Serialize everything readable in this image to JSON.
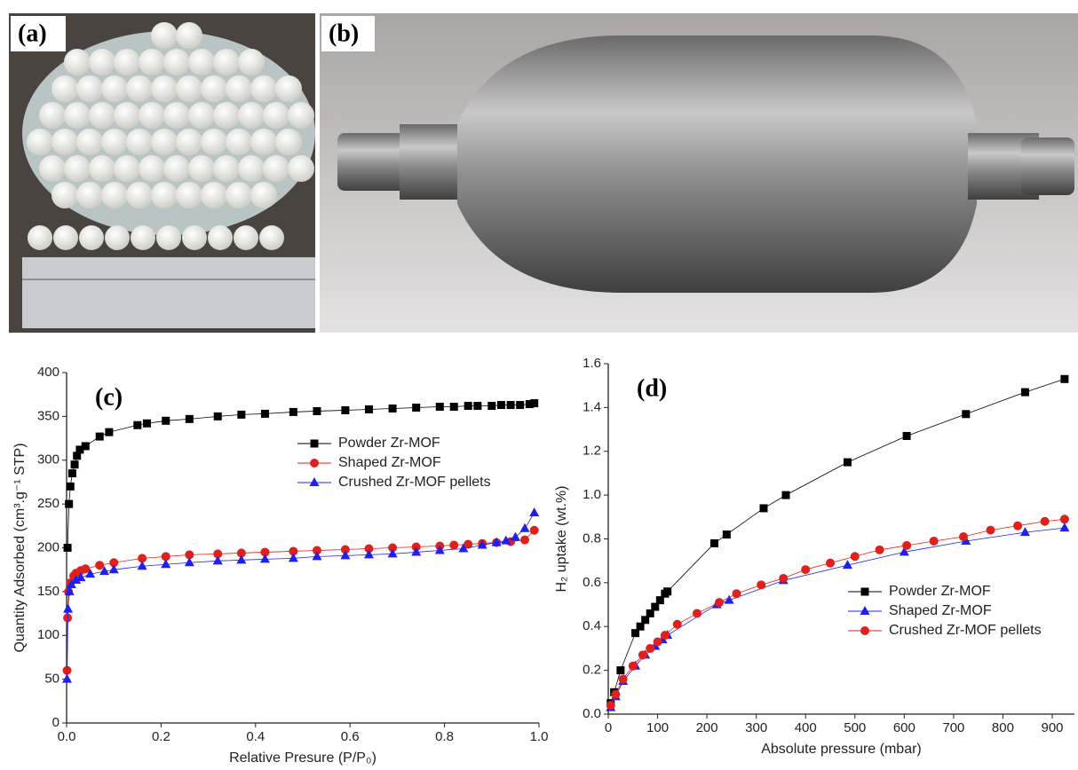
{
  "panels": {
    "a": "(a)",
    "b": "(b)"
  },
  "chart_data": [
    {
      "type": "line",
      "annotation": "(c)",
      "x_label": "Relative Presure (P/P₀)",
      "y_label": "Quantity Adsorbed (cm³.g⁻¹ STP)",
      "xlim": [
        0,
        1
      ],
      "ylim": [
        0,
        400
      ],
      "xticks": [
        {
          "value": 0,
          "label": "0.0"
        },
        0.2,
        0.4,
        0.6,
        0.8,
        {
          "value": 1,
          "label": "1.0"
        }
      ],
      "yticks": [
        0,
        50,
        100,
        150,
        200,
        250,
        300,
        350,
        400
      ],
      "legend": "right",
      "series": [
        {
          "name": "Powder Zr-MOF",
          "color": "#000000",
          "marker": "square",
          "x": [
            0.002,
            0.005,
            0.008,
            0.012,
            0.017,
            0.022,
            0.028,
            0.04,
            0.07,
            0.09,
            0.15,
            0.17,
            0.21,
            0.26,
            0.32,
            0.37,
            0.42,
            0.48,
            0.53,
            0.59,
            0.64,
            0.69,
            0.74,
            0.79,
            0.82,
            0.85,
            0.87,
            0.9,
            0.92,
            0.94,
            0.96,
            0.98,
            0.99
          ],
          "values": [
            200,
            250,
            270,
            285,
            295,
            305,
            312,
            316,
            327,
            332,
            340,
            342,
            345,
            347,
            350,
            352,
            353,
            355,
            356,
            357,
            358,
            359,
            360,
            361,
            361,
            362,
            362,
            362,
            363,
            363,
            363,
            364,
            365
          ]
        },
        {
          "name": "Shaped Zr-MOF",
          "color": "#e0201c",
          "marker": "circle",
          "x": [
            0.001,
            0.002,
            0.004,
            0.008,
            0.015,
            0.02,
            0.03,
            0.04,
            0.07,
            0.1,
            0.16,
            0.21,
            0.26,
            0.32,
            0.37,
            0.42,
            0.48,
            0.53,
            0.59,
            0.64,
            0.69,
            0.74,
            0.79,
            0.82,
            0.85,
            0.88,
            0.91,
            0.94,
            0.97,
            0.99
          ],
          "values": [
            60,
            120,
            150,
            160,
            168,
            171,
            174,
            176,
            180,
            183,
            188,
            190,
            192,
            193,
            194,
            195,
            196,
            197,
            198,
            199,
            200,
            201,
            202,
            203,
            204,
            205,
            206,
            207,
            209,
            220
          ]
        },
        {
          "name": "Crushed Zr-MOF pellets",
          "color": "#1f1ff0",
          "marker": "triangle",
          "x": [
            0.001,
            0.003,
            0.006,
            0.01,
            0.02,
            0.03,
            0.05,
            0.08,
            0.1,
            0.16,
            0.21,
            0.26,
            0.32,
            0.37,
            0.42,
            0.48,
            0.53,
            0.59,
            0.64,
            0.69,
            0.74,
            0.79,
            0.84,
            0.88,
            0.91,
            0.93,
            0.95,
            0.97,
            0.99
          ],
          "values": [
            50,
            130,
            150,
            158,
            163,
            166,
            170,
            173,
            175,
            179,
            181,
            183,
            185,
            186,
            187,
            188,
            190,
            191,
            192,
            193,
            195,
            197,
            199,
            203,
            206,
            208,
            212,
            222,
            240
          ]
        }
      ]
    },
    {
      "type": "line",
      "annotation": "(d)",
      "x_label": "Absolute pressure (mbar)",
      "y_label": "H₂ uptake (wt.%)",
      "xlim": [
        0,
        945
      ],
      "ylim": [
        0,
        1.6
      ],
      "xticks": [
        0,
        100,
        200,
        300,
        400,
        500,
        600,
        700,
        800,
        900
      ],
      "yticks": [
        {
          "value": 0,
          "label": "0.0"
        },
        0.2,
        0.4,
        0.6,
        0.8,
        {
          "value": 1,
          "label": "1.0"
        },
        1.2,
        1.4,
        1.6
      ],
      "legend": "lower right",
      "series": [
        {
          "name": "Powder Zr-MOF",
          "color": "#000000",
          "marker": "square",
          "x": [
            5,
            12,
            25,
            55,
            65,
            75,
            85,
            95,
            105,
            115,
            120,
            215,
            240,
            315,
            360,
            485,
            605,
            725,
            845,
            925
          ],
          "values": [
            0.05,
            0.1,
            0.2,
            0.37,
            0.4,
            0.43,
            0.46,
            0.49,
            0.52,
            0.55,
            0.56,
            0.78,
            0.82,
            0.94,
            1.0,
            1.15,
            1.27,
            1.37,
            1.47,
            1.53
          ]
        },
        {
          "name": "Shaped Zr-MOF",
          "color": "#1f1ff0",
          "marker": "triangle",
          "x": [
            5,
            15,
            30,
            55,
            75,
            95,
            110,
            120,
            220,
            245,
            355,
            485,
            600,
            725,
            845,
            925
          ],
          "values": [
            0.03,
            0.08,
            0.15,
            0.22,
            0.27,
            0.31,
            0.34,
            0.36,
            0.5,
            0.52,
            0.61,
            0.68,
            0.74,
            0.79,
            0.83,
            0.85
          ]
        },
        {
          "name": "Crushed Zr-MOF pellets",
          "color": "#e0201c",
          "marker": "circle",
          "x": [
            5,
            15,
            30,
            50,
            70,
            85,
            100,
            115,
            140,
            180,
            225,
            260,
            310,
            355,
            400,
            450,
            500,
            550,
            605,
            660,
            720,
            775,
            830,
            885,
            925
          ],
          "values": [
            0.04,
            0.09,
            0.16,
            0.22,
            0.27,
            0.3,
            0.33,
            0.36,
            0.41,
            0.46,
            0.51,
            0.55,
            0.59,
            0.62,
            0.66,
            0.69,
            0.72,
            0.75,
            0.77,
            0.79,
            0.81,
            0.84,
            0.86,
            0.88,
            0.89
          ]
        }
      ]
    }
  ]
}
